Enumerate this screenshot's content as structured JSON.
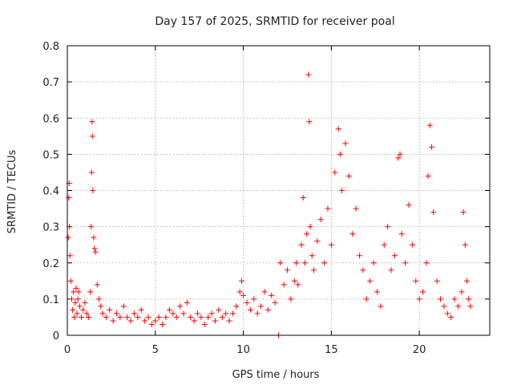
{
  "chart_data": {
    "type": "scatter",
    "title": "Day 157 of 2025, SRMTID for receiver poal",
    "xlabel": "GPS time / hours",
    "ylabel": "SRMTID / TECUs",
    "xlim": [
      0,
      24
    ],
    "ylim": [
      0,
      0.8
    ],
    "xticks": [
      0,
      5,
      10,
      15,
      20
    ],
    "xtick_labels": [
      "0",
      "5",
      "10",
      "15",
      "20"
    ],
    "yticks": [
      0,
      0.1,
      0.2,
      0.3,
      0.4,
      0.5,
      0.6,
      0.7,
      0.8
    ],
    "ytick_labels": [
      "0",
      "0.1",
      "0.2",
      "0.3",
      "0.4",
      "0.5",
      "0.6",
      "0.7",
      "0.8"
    ],
    "grid": true,
    "marker": "+",
    "marker_color": "#ff0000",
    "series": [
      {
        "name": "SRMTID",
        "points": [
          [
            0.05,
            0.27
          ],
          [
            0.08,
            0.38
          ],
          [
            0.1,
            0.42
          ],
          [
            0.12,
            0.3
          ],
          [
            0.15,
            0.22
          ],
          [
            0.2,
            0.15
          ],
          [
            0.25,
            0.1
          ],
          [
            0.3,
            0.07
          ],
          [
            0.35,
            0.12
          ],
          [
            0.4,
            0.05
          ],
          [
            0.45,
            0.09
          ],
          [
            0.5,
            0.13
          ],
          [
            0.55,
            0.06
          ],
          [
            0.6,
            0.1
          ],
          [
            0.65,
            0.12
          ],
          [
            0.7,
            0.08
          ],
          [
            0.8,
            0.05
          ],
          [
            0.9,
            0.07
          ],
          [
            1.0,
            0.09
          ],
          [
            1.1,
            0.06
          ],
          [
            1.2,
            0.05
          ],
          [
            1.3,
            0.12
          ],
          [
            1.35,
            0.3
          ],
          [
            1.38,
            0.45
          ],
          [
            1.4,
            0.59
          ],
          [
            1.42,
            0.55
          ],
          [
            1.45,
            0.4
          ],
          [
            1.5,
            0.27
          ],
          [
            1.55,
            0.24
          ],
          [
            1.6,
            0.23
          ],
          [
            1.7,
            0.14
          ],
          [
            1.8,
            0.1
          ],
          [
            1.9,
            0.08
          ],
          [
            2.0,
            0.06
          ],
          [
            2.2,
            0.05
          ],
          [
            2.4,
            0.07
          ],
          [
            2.6,
            0.04
          ],
          [
            2.8,
            0.06
          ],
          [
            3.0,
            0.05
          ],
          [
            3.2,
            0.08
          ],
          [
            3.4,
            0.05
          ],
          [
            3.6,
            0.04
          ],
          [
            3.8,
            0.06
          ],
          [
            4.0,
            0.05
          ],
          [
            4.2,
            0.07
          ],
          [
            4.4,
            0.04
          ],
          [
            4.6,
            0.05
          ],
          [
            4.8,
            0.03
          ],
          [
            5.0,
            0.04
          ],
          [
            5.2,
            0.05
          ],
          [
            5.4,
            0.03
          ],
          [
            5.6,
            0.05
          ],
          [
            5.8,
            0.07
          ],
          [
            6.0,
            0.06
          ],
          [
            6.2,
            0.05
          ],
          [
            6.4,
            0.08
          ],
          [
            6.6,
            0.06
          ],
          [
            6.8,
            0.09
          ],
          [
            7.0,
            0.05
          ],
          [
            7.2,
            0.04
          ],
          [
            7.4,
            0.06
          ],
          [
            7.6,
            0.05
          ],
          [
            7.8,
            0.03
          ],
          [
            8.0,
            0.05
          ],
          [
            8.2,
            0.06
          ],
          [
            8.4,
            0.04
          ],
          [
            8.6,
            0.07
          ],
          [
            8.8,
            0.05
          ],
          [
            9.0,
            0.06
          ],
          [
            9.2,
            0.04
          ],
          [
            9.4,
            0.06
          ],
          [
            9.6,
            0.08
          ],
          [
            9.8,
            0.12
          ],
          [
            9.9,
            0.15
          ],
          [
            10.0,
            0.11
          ],
          [
            10.2,
            0.09
          ],
          [
            10.4,
            0.07
          ],
          [
            10.6,
            0.1
          ],
          [
            10.8,
            0.06
          ],
          [
            11.0,
            0.08
          ],
          [
            11.2,
            0.12
          ],
          [
            11.4,
            0.07
          ],
          [
            11.6,
            0.11
          ],
          [
            11.8,
            0.09
          ],
          [
            12.0,
            0.0
          ],
          [
            12.1,
            0.2
          ],
          [
            12.3,
            0.14
          ],
          [
            12.5,
            0.18
          ],
          [
            12.7,
            0.1
          ],
          [
            12.9,
            0.15
          ],
          [
            13.0,
            0.2
          ],
          [
            13.1,
            0.14
          ],
          [
            13.3,
            0.25
          ],
          [
            13.4,
            0.38
          ],
          [
            13.5,
            0.2
          ],
          [
            13.6,
            0.28
          ],
          [
            13.7,
            0.72
          ],
          [
            13.75,
            0.59
          ],
          [
            13.8,
            0.3
          ],
          [
            13.9,
            0.22
          ],
          [
            14.0,
            0.18
          ],
          [
            14.2,
            0.26
          ],
          [
            14.4,
            0.32
          ],
          [
            14.6,
            0.2
          ],
          [
            14.8,
            0.35
          ],
          [
            15.0,
            0.25
          ],
          [
            15.2,
            0.45
          ],
          [
            15.4,
            0.57
          ],
          [
            15.5,
            0.5
          ],
          [
            15.6,
            0.4
          ],
          [
            15.8,
            0.53
          ],
          [
            16.0,
            0.44
          ],
          [
            16.2,
            0.28
          ],
          [
            16.4,
            0.35
          ],
          [
            16.6,
            0.22
          ],
          [
            16.8,
            0.18
          ],
          [
            17.0,
            0.1
          ],
          [
            17.2,
            0.15
          ],
          [
            17.4,
            0.2
          ],
          [
            17.6,
            0.12
          ],
          [
            17.8,
            0.08
          ],
          [
            18.0,
            0.25
          ],
          [
            18.2,
            0.3
          ],
          [
            18.4,
            0.18
          ],
          [
            18.6,
            0.22
          ],
          [
            18.8,
            0.49
          ],
          [
            18.9,
            0.5
          ],
          [
            19.0,
            0.28
          ],
          [
            19.2,
            0.2
          ],
          [
            19.4,
            0.36
          ],
          [
            19.6,
            0.25
          ],
          [
            19.8,
            0.15
          ],
          [
            20.0,
            0.1
          ],
          [
            20.2,
            0.12
          ],
          [
            20.4,
            0.2
          ],
          [
            20.5,
            0.44
          ],
          [
            20.6,
            0.58
          ],
          [
            20.7,
            0.52
          ],
          [
            20.8,
            0.34
          ],
          [
            21.0,
            0.15
          ],
          [
            21.2,
            0.1
          ],
          [
            21.4,
            0.08
          ],
          [
            21.6,
            0.06
          ],
          [
            21.8,
            0.05
          ],
          [
            22.0,
            0.1
          ],
          [
            22.2,
            0.08
          ],
          [
            22.4,
            0.12
          ],
          [
            22.5,
            0.34
          ],
          [
            22.6,
            0.25
          ],
          [
            22.7,
            0.15
          ],
          [
            22.8,
            0.1
          ],
          [
            22.9,
            0.08
          ]
        ]
      }
    ]
  }
}
